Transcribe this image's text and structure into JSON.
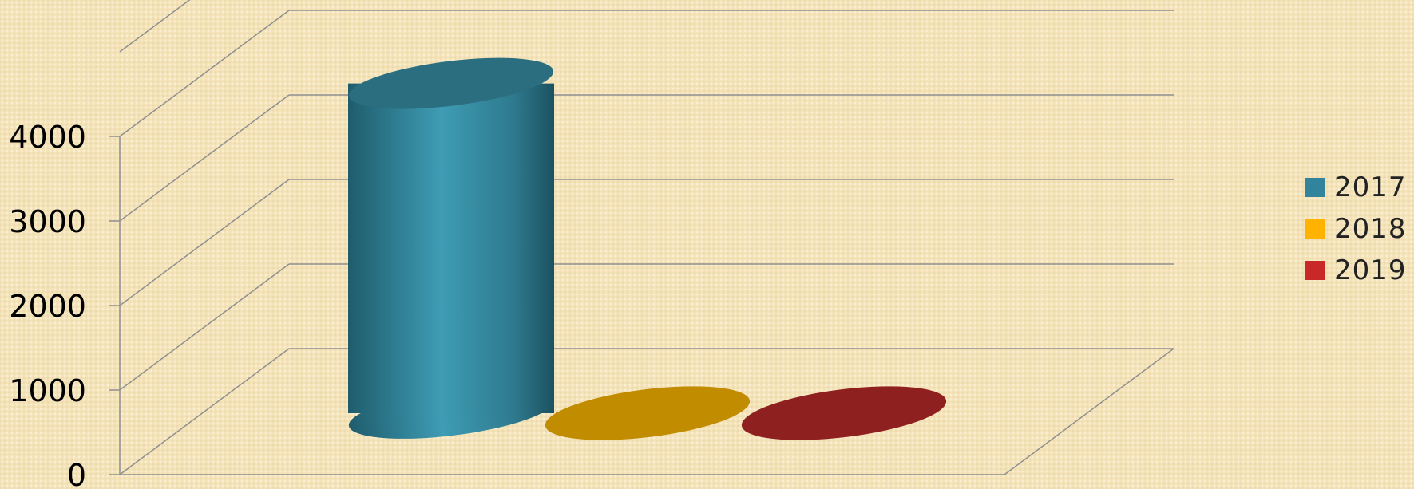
{
  "chart_data": {
    "type": "bar",
    "style": "3d-cylinder",
    "categories": [
      ""
    ],
    "series": [
      {
        "name": "2017",
        "values": [
          3900
        ],
        "color": "#31849b"
      },
      {
        "name": "2018",
        "values": [
          80
        ],
        "color": "#c18c00"
      },
      {
        "name": "2019",
        "values": [
          80
        ],
        "color": "#8e2020"
      }
    ],
    "yticks": [
      "0",
      "1000",
      "2000",
      "3000",
      "4000"
    ],
    "ylim": [
      0,
      5000
    ],
    "grid": true,
    "legend_position": "right"
  },
  "legend": [
    {
      "label": "2017",
      "color": "#31849b"
    },
    {
      "label": "2018",
      "color": "#ffb300"
    },
    {
      "label": "2019",
      "color": "#c82828"
    }
  ]
}
